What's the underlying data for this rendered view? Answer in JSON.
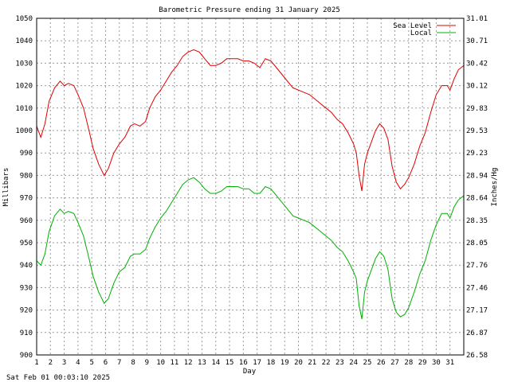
{
  "chart_data": {
    "type": "line",
    "title": "Barometric Pressure ending 31 January 2025",
    "xlabel": "Day",
    "ylabel": "Millibars",
    "ylabel_right": "Inches/Hg",
    "footer": "Sat Feb 01 00:03:10 2025",
    "xlim": [
      1,
      32
    ],
    "ylim": [
      900,
      1050
    ],
    "ylim_right": [
      26.58,
      31.01
    ],
    "x_ticks": [
      "1",
      "2",
      "3",
      "4",
      "5",
      "6",
      "7",
      "8",
      "9",
      "10",
      "11",
      "12",
      "13",
      "14",
      "15",
      "16",
      "17",
      "18",
      "19",
      "20",
      "21",
      "22",
      "23",
      "24",
      "25",
      "26",
      "27",
      "28",
      "29",
      "30",
      "31"
    ],
    "y_ticks": [
      "900",
      "910",
      "920",
      "930",
      "940",
      "950",
      "960",
      "970",
      "980",
      "990",
      "1000",
      "1010",
      "1020",
      "1030",
      "1040",
      "1050"
    ],
    "y_ticks_right": [
      "26.58",
      "26.87",
      "27.17",
      "27.46",
      "27.76",
      "28.05",
      "28.35",
      "28.64",
      "28.94",
      "29.23",
      "29.53",
      "29.83",
      "30.12",
      "30.42",
      "30.71",
      "31.01"
    ],
    "grid": true,
    "legend_position": "top-right",
    "series": [
      {
        "name": "Sea Level",
        "color": "#e00000",
        "points": [
          [
            1.0,
            1002
          ],
          [
            1.3,
            997
          ],
          [
            1.6,
            1003
          ],
          [
            1.9,
            1013
          ],
          [
            2.3,
            1019
          ],
          [
            2.7,
            1022
          ],
          [
            3.0,
            1020
          ],
          [
            3.3,
            1021
          ],
          [
            3.7,
            1020
          ],
          [
            4.0,
            1016
          ],
          [
            4.4,
            1010
          ],
          [
            4.8,
            1000
          ],
          [
            5.1,
            992
          ],
          [
            5.5,
            985
          ],
          [
            5.9,
            980
          ],
          [
            6.2,
            983
          ],
          [
            6.6,
            990
          ],
          [
            7.0,
            994
          ],
          [
            7.4,
            997
          ],
          [
            7.8,
            1002
          ],
          [
            8.1,
            1003
          ],
          [
            8.5,
            1002
          ],
          [
            8.9,
            1004
          ],
          [
            9.2,
            1010
          ],
          [
            9.6,
            1015
          ],
          [
            10.0,
            1018
          ],
          [
            10.4,
            1022
          ],
          [
            10.8,
            1026
          ],
          [
            11.2,
            1029
          ],
          [
            11.6,
            1033
          ],
          [
            12.0,
            1035
          ],
          [
            12.4,
            1036
          ],
          [
            12.8,
            1035
          ],
          [
            13.2,
            1032
          ],
          [
            13.6,
            1029
          ],
          [
            14.0,
            1029
          ],
          [
            14.4,
            1030
          ],
          [
            14.8,
            1032
          ],
          [
            15.2,
            1032
          ],
          [
            15.6,
            1032
          ],
          [
            16.0,
            1031
          ],
          [
            16.4,
            1031
          ],
          [
            16.8,
            1030
          ],
          [
            17.2,
            1028
          ],
          [
            17.6,
            1032
          ],
          [
            18.0,
            1031
          ],
          [
            18.4,
            1028
          ],
          [
            18.8,
            1025
          ],
          [
            19.2,
            1022
          ],
          [
            19.6,
            1019
          ],
          [
            20.0,
            1018
          ],
          [
            20.4,
            1017
          ],
          [
            20.8,
            1016
          ],
          [
            21.2,
            1014
          ],
          [
            21.6,
            1012
          ],
          [
            22.0,
            1010
          ],
          [
            22.4,
            1008
          ],
          [
            22.8,
            1005
          ],
          [
            23.2,
            1003
          ],
          [
            23.6,
            999
          ],
          [
            24.0,
            994
          ],
          [
            24.2,
            990
          ],
          [
            24.4,
            980
          ],
          [
            24.6,
            973
          ],
          [
            24.8,
            985
          ],
          [
            25.0,
            990
          ],
          [
            25.3,
            995
          ],
          [
            25.6,
            1000
          ],
          [
            25.9,
            1003
          ],
          [
            26.2,
            1001
          ],
          [
            26.5,
            996
          ],
          [
            26.8,
            984
          ],
          [
            27.1,
            977
          ],
          [
            27.4,
            974
          ],
          [
            27.7,
            976
          ],
          [
            28.0,
            979
          ],
          [
            28.4,
            985
          ],
          [
            28.8,
            993
          ],
          [
            29.2,
            999
          ],
          [
            29.6,
            1008
          ],
          [
            30.0,
            1016
          ],
          [
            30.4,
            1020
          ],
          [
            30.8,
            1020
          ],
          [
            31.0,
            1018
          ],
          [
            31.3,
            1023
          ],
          [
            31.6,
            1027
          ],
          [
            32.0,
            1029
          ]
        ]
      },
      {
        "name": "Local",
        "color": "#00b000",
        "points": [
          [
            1.0,
            942
          ],
          [
            1.3,
            940
          ],
          [
            1.6,
            945
          ],
          [
            1.9,
            955
          ],
          [
            2.3,
            962
          ],
          [
            2.7,
            965
          ],
          [
            3.0,
            963
          ],
          [
            3.3,
            964
          ],
          [
            3.7,
            963
          ],
          [
            4.0,
            959
          ],
          [
            4.4,
            953
          ],
          [
            4.8,
            943
          ],
          [
            5.1,
            935
          ],
          [
            5.5,
            928
          ],
          [
            5.9,
            923
          ],
          [
            6.2,
            925
          ],
          [
            6.6,
            932
          ],
          [
            7.0,
            937
          ],
          [
            7.4,
            939
          ],
          [
            7.8,
            944
          ],
          [
            8.1,
            945
          ],
          [
            8.5,
            945
          ],
          [
            8.9,
            947
          ],
          [
            9.2,
            952
          ],
          [
            9.6,
            957
          ],
          [
            10.0,
            961
          ],
          [
            10.4,
            964
          ],
          [
            10.8,
            968
          ],
          [
            11.2,
            972
          ],
          [
            11.6,
            976
          ],
          [
            12.0,
            978
          ],
          [
            12.4,
            979
          ],
          [
            12.8,
            977
          ],
          [
            13.2,
            974
          ],
          [
            13.6,
            972
          ],
          [
            14.0,
            972
          ],
          [
            14.4,
            973
          ],
          [
            14.8,
            975
          ],
          [
            15.2,
            975
          ],
          [
            15.6,
            975
          ],
          [
            16.0,
            974
          ],
          [
            16.4,
            974
          ],
          [
            16.8,
            972
          ],
          [
            17.2,
            972
          ],
          [
            17.6,
            975
          ],
          [
            18.0,
            974
          ],
          [
            18.4,
            971
          ],
          [
            18.8,
            968
          ],
          [
            19.2,
            965
          ],
          [
            19.6,
            962
          ],
          [
            20.0,
            961
          ],
          [
            20.4,
            960
          ],
          [
            20.8,
            959
          ],
          [
            21.2,
            957
          ],
          [
            21.6,
            955
          ],
          [
            22.0,
            953
          ],
          [
            22.4,
            951
          ],
          [
            22.8,
            948
          ],
          [
            23.2,
            946
          ],
          [
            23.6,
            942
          ],
          [
            24.0,
            937
          ],
          [
            24.2,
            934
          ],
          [
            24.4,
            922
          ],
          [
            24.6,
            916
          ],
          [
            24.8,
            928
          ],
          [
            25.0,
            933
          ],
          [
            25.3,
            938
          ],
          [
            25.6,
            943
          ],
          [
            25.9,
            946
          ],
          [
            26.2,
            944
          ],
          [
            26.5,
            938
          ],
          [
            26.8,
            925
          ],
          [
            27.1,
            919
          ],
          [
            27.4,
            917
          ],
          [
            27.7,
            918
          ],
          [
            28.0,
            921
          ],
          [
            28.4,
            928
          ],
          [
            28.8,
            936
          ],
          [
            29.2,
            942
          ],
          [
            29.6,
            951
          ],
          [
            30.0,
            958
          ],
          [
            30.4,
            963
          ],
          [
            30.8,
            963
          ],
          [
            31.0,
            961
          ],
          [
            31.3,
            966
          ],
          [
            31.6,
            969
          ],
          [
            32.0,
            971
          ]
        ]
      }
    ]
  }
}
